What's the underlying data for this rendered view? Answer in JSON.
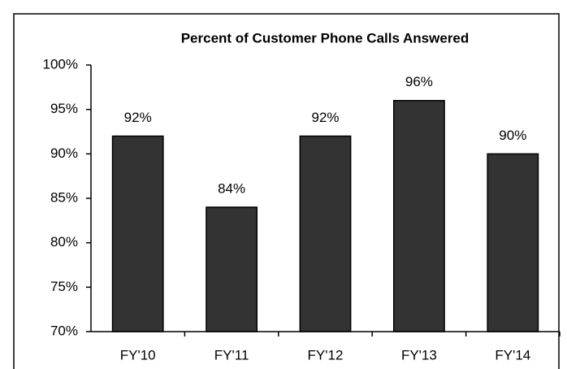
{
  "chart_data": {
    "type": "bar",
    "title": "Percent of Customer Phone Calls Answered",
    "categories": [
      "FY'10",
      "FY'11",
      "FY'12",
      "FY'13",
      "FY'14"
    ],
    "values": [
      92,
      84,
      92,
      96,
      90
    ],
    "value_labels": [
      "92%",
      "84%",
      "92%",
      "96%",
      "90%"
    ],
    "color": "#333333",
    "ylim": [
      70,
      100
    ],
    "yticks": [
      {
        "value": 70,
        "label": "70%"
      },
      {
        "value": 75,
        "label": "75%"
      },
      {
        "value": 80,
        "label": "80%"
      },
      {
        "value": 85,
        "label": "85%"
      },
      {
        "value": 90,
        "label": "90%"
      },
      {
        "value": 95,
        "label": "95%"
      },
      {
        "value": 100,
        "label": "100%"
      }
    ],
    "grid": false
  }
}
